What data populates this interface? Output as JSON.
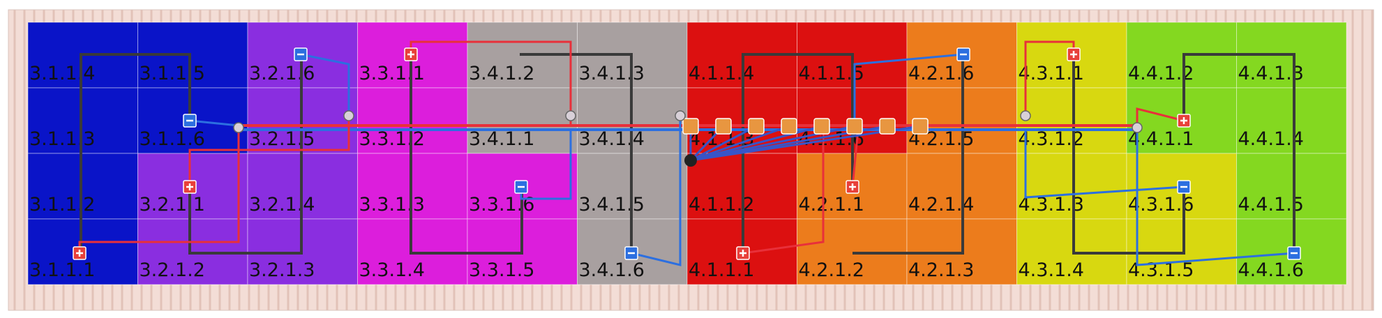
{
  "panels": {
    "rows": [
      [
        {
          "label": "3.1.1.4",
          "color": "#0a14c8"
        },
        {
          "label": "3.1.1.5",
          "color": "#0a14c8"
        },
        {
          "label": "3.2.1.6",
          "color": "#8a2ee0"
        },
        {
          "label": "3.3.1.1",
          "color": "#dc1edc"
        },
        {
          "label": "3.4.1.2",
          "color": "#a8a0a0"
        },
        {
          "label": "3.4.1.3",
          "color": "#a8a0a0"
        },
        {
          "label": "4.1.1.4",
          "color": "#dc1010"
        },
        {
          "label": "4.1.1.5",
          "color": "#dc1010"
        },
        {
          "label": "4.2.1.6",
          "color": "#ec7c1c"
        },
        {
          "label": "4.3.1.1",
          "color": "#d8d810"
        },
        {
          "label": "4.4.1.2",
          "color": "#84d820"
        },
        {
          "label": "4.4.1.3",
          "color": "#84d820"
        }
      ],
      [
        {
          "label": "3.1.1.3",
          "color": "#0a14c8"
        },
        {
          "label": "3.1.1.6",
          "color": "#0a14c8"
        },
        {
          "label": "3.2.1.5",
          "color": "#8a2ee0"
        },
        {
          "label": "3.3.1.2",
          "color": "#dc1edc"
        },
        {
          "label": "3.4.1.1",
          "color": "#a8a0a0"
        },
        {
          "label": "3.4.1.4",
          "color": "#a8a0a0"
        },
        {
          "label": "4.1.1.3",
          "color": "#dc1010"
        },
        {
          "label": "4.1.1.6",
          "color": "#dc1010"
        },
        {
          "label": "4.2.1.5",
          "color": "#ec7c1c"
        },
        {
          "label": "4.3.1.2",
          "color": "#d8d810"
        },
        {
          "label": "4.4.1.1",
          "color": "#84d820"
        },
        {
          "label": "4.4.1.4",
          "color": "#84d820"
        }
      ],
      [
        {
          "label": "3.1.1.2",
          "color": "#0a14c8"
        },
        {
          "label": "3.2.1.1",
          "color": "#8a2ee0"
        },
        {
          "label": "3.2.1.4",
          "color": "#8a2ee0"
        },
        {
          "label": "3.3.1.3",
          "color": "#dc1edc"
        },
        {
          "label": "3.3.1.6",
          "color": "#dc1edc"
        },
        {
          "label": "3.4.1.5",
          "color": "#a8a0a0"
        },
        {
          "label": "4.1.1.2",
          "color": "#dc1010"
        },
        {
          "label": "4.2.1.1",
          "color": "#ec7c1c"
        },
        {
          "label": "4.2.1.4",
          "color": "#ec7c1c"
        },
        {
          "label": "4.3.1.3",
          "color": "#d8d810"
        },
        {
          "label": "4.3.1.6",
          "color": "#d8d810"
        },
        {
          "label": "4.4.1.5",
          "color": "#84d820"
        }
      ],
      [
        {
          "label": "3.1.1.1",
          "color": "#0a14c8"
        },
        {
          "label": "3.2.1.2",
          "color": "#8a2ee0"
        },
        {
          "label": "3.2.1.3",
          "color": "#8a2ee0"
        },
        {
          "label": "3.3.1.4",
          "color": "#dc1edc"
        },
        {
          "label": "3.3.1.5",
          "color": "#dc1edc"
        },
        {
          "label": "3.4.1.6",
          "color": "#a8a0a0"
        },
        {
          "label": "4.1.1.1",
          "color": "#dc1010"
        },
        {
          "label": "4.2.1.2",
          "color": "#ec7c1c"
        },
        {
          "label": "4.2.1.3",
          "color": "#ec7c1c"
        },
        {
          "label": "4.3.1.4",
          "color": "#d8d810"
        },
        {
          "label": "4.3.1.5",
          "color": "#d8d810"
        },
        {
          "label": "4.4.1.6",
          "color": "#84d820"
        }
      ]
    ]
  }
}
